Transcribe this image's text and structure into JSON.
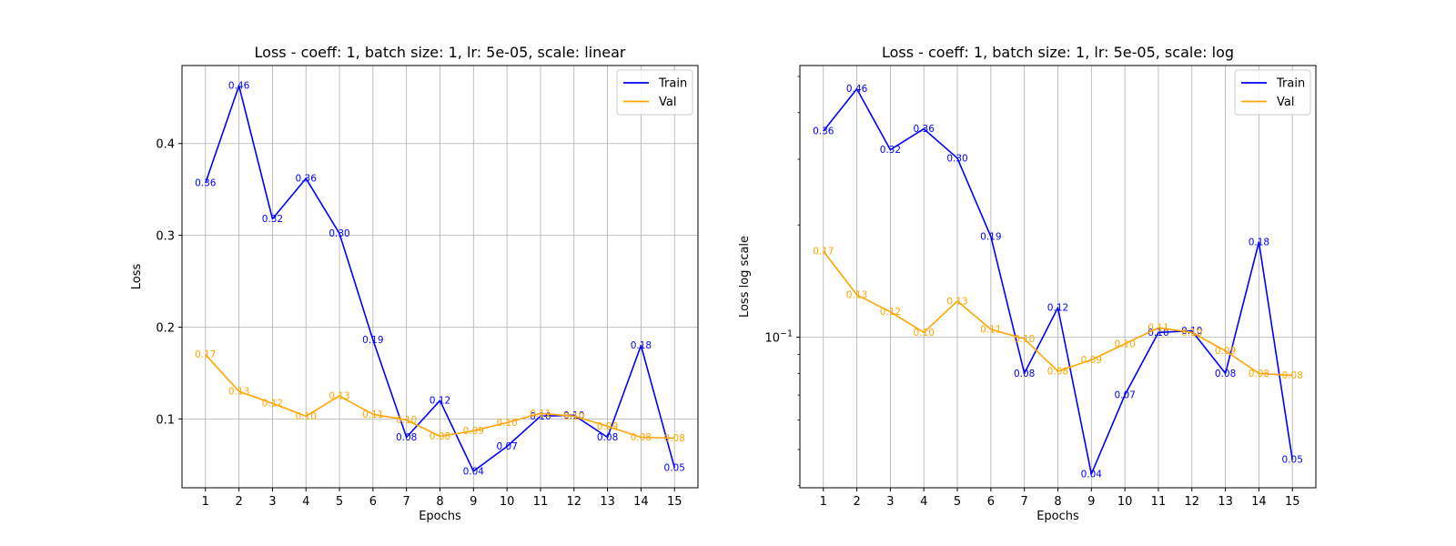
{
  "chart_data": [
    {
      "type": "line",
      "title": "Loss - coeff: 1, batch size: 1, lr: 5e-05, scale: linear",
      "xlabel": "Epochs",
      "ylabel": "Loss",
      "yscale": "linear",
      "xlim": [
        0.3,
        15.7
      ],
      "ylim": [
        0.025,
        0.485
      ],
      "x": [
        1,
        2,
        3,
        4,
        5,
        6,
        7,
        8,
        9,
        10,
        11,
        12,
        13,
        14,
        15
      ],
      "xticks": [
        "1",
        "2",
        "3",
        "4",
        "5",
        "6",
        "7",
        "8",
        "9",
        "10",
        "11",
        "12",
        "13",
        "14",
        "15"
      ],
      "yticks": [
        {
          "value": 0.1,
          "label": "0.1"
        },
        {
          "value": 0.2,
          "label": "0.2"
        },
        {
          "value": 0.3,
          "label": "0.3"
        },
        {
          "value": 0.4,
          "label": "0.4"
        }
      ],
      "grid": true,
      "legend_position": "top-right",
      "series": [
        {
          "name": "Train",
          "color": "#0000ff",
          "values": [
            0.357,
            0.463,
            0.318,
            0.362,
            0.302,
            0.186,
            0.08,
            0.12,
            0.043,
            0.07,
            0.103,
            0.104,
            0.08,
            0.18,
            0.047
          ],
          "labels": [
            "0.36",
            "0.46",
            "0.32",
            "0.36",
            "0.30",
            "0.19",
            "0.08",
            "0.12",
            "0.04",
            "0.07",
            "0.10",
            "0.10",
            "0.08",
            "0.18",
            "0.05"
          ]
        },
        {
          "name": "Val",
          "color": "#ffa500",
          "values": [
            0.17,
            0.13,
            0.117,
            0.103,
            0.125,
            0.105,
            0.099,
            0.081,
            0.087,
            0.096,
            0.106,
            0.103,
            0.092,
            0.08,
            0.079
          ],
          "labels": [
            "0.17",
            "0.13",
            "0.12",
            "0.10",
            "0.13",
            "0.11",
            "0.10",
            "0.08",
            "0.09",
            "0.10",
            "0.11",
            "0.10",
            "0.09",
            "0.08",
            "0.08"
          ]
        }
      ]
    },
    {
      "type": "line",
      "title": "Loss - coeff: 1, batch size: 1, lr: 5e-05, scale: log",
      "xlabel": "Epochs",
      "ylabel": "Loss log scale",
      "yscale": "log",
      "xlim": [
        0.3,
        15.7
      ],
      "ylim": [
        0.0395,
        0.535
      ],
      "x": [
        1,
        2,
        3,
        4,
        5,
        6,
        7,
        8,
        9,
        10,
        11,
        12,
        13,
        14,
        15
      ],
      "xticks": [
        "1",
        "2",
        "3",
        "4",
        "5",
        "6",
        "7",
        "8",
        "9",
        "10",
        "11",
        "12",
        "13",
        "14",
        "15"
      ],
      "yticks": [
        {
          "value": 0.1,
          "label": "10^-1"
        }
      ],
      "grid": true,
      "legend_position": "top-right",
      "series": [
        {
          "name": "Train",
          "color": "#0000ff",
          "values": [
            0.357,
            0.463,
            0.318,
            0.362,
            0.302,
            0.186,
            0.08,
            0.12,
            0.043,
            0.07,
            0.103,
            0.104,
            0.08,
            0.18,
            0.047
          ],
          "labels": [
            "0.36",
            "0.46",
            "0.32",
            "0.36",
            "0.30",
            "0.19",
            "0.08",
            "0.12",
            "0.04",
            "0.07",
            "0.10",
            "0.10",
            "0.08",
            "0.18",
            "0.05"
          ]
        },
        {
          "name": "Val",
          "color": "#ffa500",
          "values": [
            0.17,
            0.13,
            0.117,
            0.103,
            0.125,
            0.105,
            0.099,
            0.081,
            0.087,
            0.096,
            0.106,
            0.103,
            0.092,
            0.08,
            0.079
          ],
          "labels": [
            "0.17",
            "0.13",
            "0.12",
            "0.10",
            "0.13",
            "0.11",
            "0.10",
            "0.08",
            "0.09",
            "0.10",
            "0.11",
            "0.10",
            "0.09",
            "0.08",
            "0.08"
          ]
        }
      ]
    }
  ]
}
